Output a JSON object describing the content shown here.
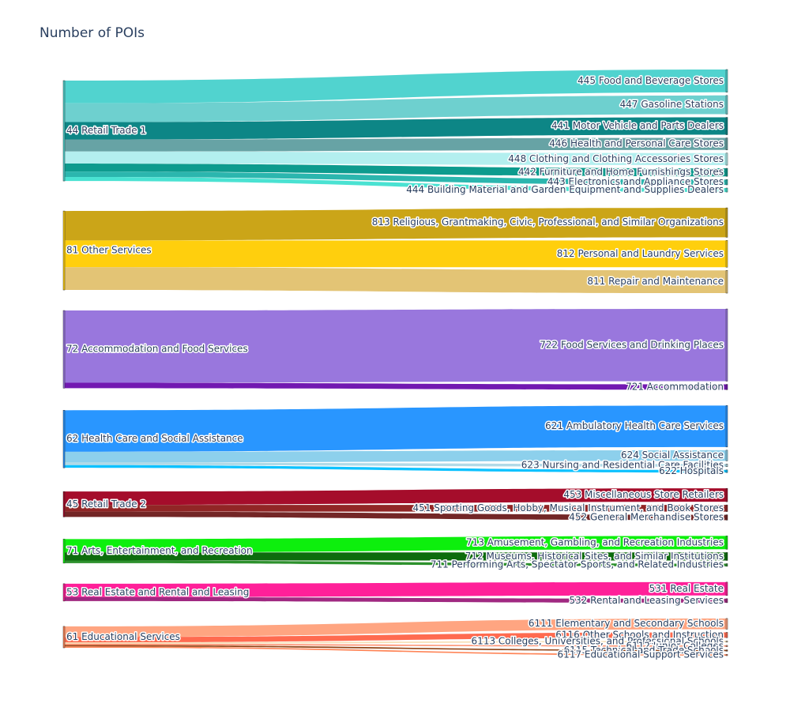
{
  "chart_data": {
    "type": "sankey",
    "title": "Number of POIs",
    "groups": [
      {
        "source": "44 Retail Trade 1",
        "color": "#48d1cc",
        "targets": [
          {
            "label": "445 Food and Beverage Stores",
            "value": 17,
            "color": "#48d1cc"
          },
          {
            "label": "447 Gasoline Stations",
            "value": 14,
            "color": "#66cdcc"
          },
          {
            "label": "441 Motor Vehicle and Parts Dealers",
            "value": 13,
            "color": "#008080"
          },
          {
            "label": "446 Health and Personal Care Stores",
            "value": 9,
            "color": "#5f9ea0"
          },
          {
            "label": "448 Clothing and Clothing Accessories Stores",
            "value": 9,
            "color": "#afeeee"
          },
          {
            "label": "442 Furniture and Home Furnishings Stores",
            "value": 6,
            "color": "#009688"
          },
          {
            "label": "443 Electronics and Appliance Stores",
            "value": 4,
            "color": "#20b2aa"
          },
          {
            "label": "444 Building Material and Garden Equipment and Supplies Dealers",
            "value": 3,
            "color": "#40e0d0"
          }
        ]
      },
      {
        "source": "81 Other Services",
        "color": "#ffcc00",
        "targets": [
          {
            "label": "813 Religious, Grantmaking, Civic, Professional, and Similar Organizations",
            "value": 22,
            "color": "#c8a00c"
          },
          {
            "label": "812 Personal and Laundry Services",
            "value": 20,
            "color": "#ffcc00"
          },
          {
            "label": "811 Repair and Maintenance",
            "value": 17,
            "color": "#e2c16e"
          }
        ]
      },
      {
        "source": "72 Accommodation and Food Services",
        "color": "#9370db",
        "targets": [
          {
            "label": "722 Food Services and Drinking Places",
            "value": 54,
            "color": "#9370db"
          },
          {
            "label": "721 Accommodation",
            "value": 4,
            "color": "#6a0dad"
          }
        ]
      },
      {
        "source": "62 Health Care and Social Assistance",
        "color": "#1e90ff",
        "targets": [
          {
            "label": "621 Ambulatory Health Care Services",
            "value": 31,
            "color": "#1e90ff"
          },
          {
            "label": "624 Social Assistance",
            "value": 8,
            "color": "#87ceeb"
          },
          {
            "label": "623 Nursing and Residential Care Facilities",
            "value": 2,
            "color": "#add8e6"
          },
          {
            "label": "622 Hospitals",
            "value": 2,
            "color": "#00bfff"
          }
        ]
      },
      {
        "source": "45 Retail Trade 2",
        "color": "#a00020",
        "targets": [
          {
            "label": "453 Miscellaneous Store Retailers",
            "value": 10,
            "color": "#a00020"
          },
          {
            "label": "451 Sporting Goods, Hobby, Musical Instrument, and Book Stores",
            "value": 5,
            "color": "#8b1a1a"
          },
          {
            "label": "452 General Merchandise Stores",
            "value": 4,
            "color": "#6b1a1a"
          }
        ]
      },
      {
        "source": "71 Arts, Entertainment, and Recreation",
        "color": "#00ff00",
        "targets": [
          {
            "label": "713 Amusement, Gambling, and Recreation Industries",
            "value": 10,
            "color": "#00ee00"
          },
          {
            "label": "712 Museums, Historical Sites, and Similar Institutions",
            "value": 6,
            "color": "#006400"
          },
          {
            "label": "711 Performing Arts, Spectator Sports, and Related Industries",
            "value": 2,
            "color": "#228b22"
          }
        ]
      },
      {
        "source": "53 Real Estate and Rental and Leasing",
        "color": "#ff1493",
        "targets": [
          {
            "label": "531 Real Estate",
            "value": 10,
            "color": "#ff1493"
          },
          {
            "label": "532 Rental and Leasing Services",
            "value": 3,
            "color": "#9b1d7a"
          }
        ]
      },
      {
        "source": "61 Educational Services",
        "color": "#ff7f50",
        "targets": [
          {
            "label": "6111 Elementary and Secondary Schools",
            "value": 8,
            "color": "#ffa07a"
          },
          {
            "label": "6116 Other Schools and Instruction",
            "value": 4,
            "color": "#ff6347"
          },
          {
            "label": "6113 Colleges, Universities, and Professional Schools",
            "value": 1,
            "color": "#f5deb3"
          },
          {
            "label": "6112 Junior Colleges",
            "value": 1,
            "color": "#ff8c69"
          },
          {
            "label": "6115 Technical and Trade Schools",
            "value": 1,
            "color": "#8b3a0a"
          },
          {
            "label": "6117 Educational Support Services",
            "value": 1,
            "color": "#ff7f50"
          }
        ]
      }
    ]
  }
}
